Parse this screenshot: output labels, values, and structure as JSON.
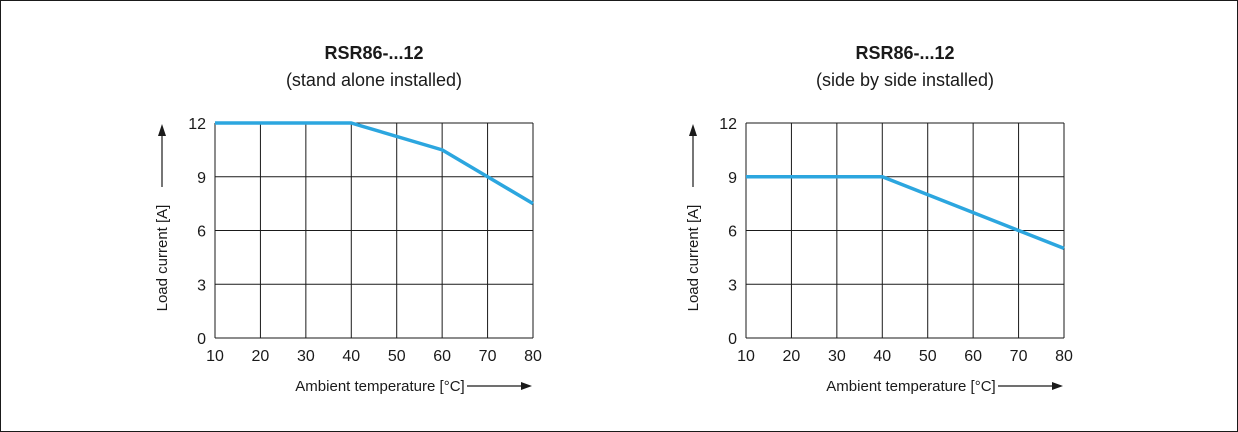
{
  "chart_data": [
    {
      "type": "line",
      "title": "RSR86-...12",
      "subtitle": "(stand alone installed)",
      "xlabel": "Ambient temperature [°C]",
      "ylabel": "Load current [A]",
      "xlim": [
        10,
        80
      ],
      "ylim": [
        0,
        12
      ],
      "x_ticks": [
        "10",
        "20",
        "30",
        "40",
        "50",
        "60",
        "70",
        "80"
      ],
      "y_ticks": [
        "0",
        "3",
        "6",
        "9",
        "12"
      ],
      "grid": true,
      "color": "#2ca6df",
      "series": [
        {
          "x": [
            10,
            40,
            60,
            70,
            80
          ],
          "y": [
            12,
            12,
            10.5,
            9,
            7.5
          ]
        }
      ]
    },
    {
      "type": "line",
      "title": "RSR86-...12",
      "subtitle": "(side by side installed)",
      "xlabel": "Ambient temperature [°C]",
      "ylabel": "Load current [A]",
      "xlim": [
        10,
        80
      ],
      "ylim": [
        0,
        12
      ],
      "x_ticks": [
        "10",
        "20",
        "30",
        "40",
        "50",
        "60",
        "70",
        "80"
      ],
      "y_ticks": [
        "0",
        "3",
        "6",
        "9",
        "12"
      ],
      "grid": true,
      "color": "#2ca6df",
      "series": [
        {
          "x": [
            10,
            40,
            70,
            80
          ],
          "y": [
            9,
            9,
            6,
            5
          ]
        }
      ]
    }
  ]
}
